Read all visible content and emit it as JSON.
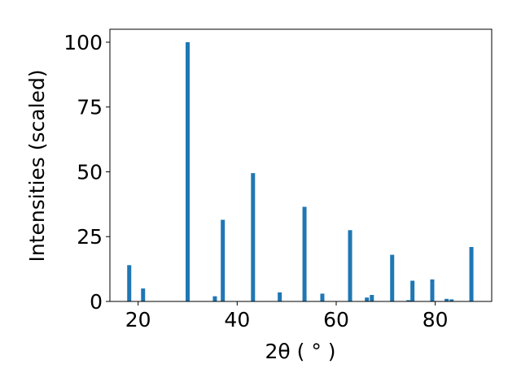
{
  "chart_data": {
    "type": "bar",
    "x_label": "2θ ( ° )",
    "y_label": "Intensities (scaled)",
    "x": [
      18.2,
      21.0,
      30.0,
      35.5,
      37.1,
      43.2,
      48.6,
      53.6,
      57.2,
      62.8,
      66.2,
      67.2,
      71.3,
      74.6,
      75.4,
      79.4,
      82.3,
      83.3,
      87.3
    ],
    "values": [
      14,
      5,
      100,
      2,
      31.5,
      49.5,
      3.5,
      36.5,
      3,
      27.5,
      1.5,
      2.5,
      18,
      0.5,
      8,
      8.5,
      1,
      0.8,
      21
    ],
    "color": "#1f77b4",
    "xlim": [
      14.3,
      91.4
    ],
    "xticks": [
      20,
      40,
      60,
      80
    ],
    "ylim": [
      0,
      105
    ],
    "yticks": [
      0,
      25,
      50,
      75,
      100
    ]
  }
}
